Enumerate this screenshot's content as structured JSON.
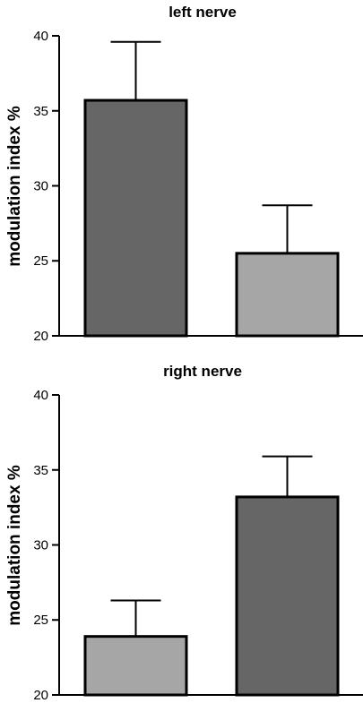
{
  "chart_data": [
    {
      "type": "bar",
      "title": "left nerve",
      "ylabel": "modulation index %",
      "xlabel": "",
      "ylim": [
        20,
        40
      ],
      "yticks": [
        "20",
        "25",
        "30",
        "35",
        "40"
      ],
      "bars": [
        {
          "value": 35.7,
          "error": 3.9,
          "color": "#666666"
        },
        {
          "value": 25.5,
          "error": 3.2,
          "color": "#a6a6a6"
        }
      ]
    },
    {
      "type": "bar",
      "title": "right nerve",
      "ylabel": "modulation index %",
      "xlabel": "",
      "ylim": [
        20,
        40
      ],
      "yticks": [
        "20",
        "25",
        "30",
        "35",
        "40"
      ],
      "bars": [
        {
          "value": 23.9,
          "error": 2.4,
          "color": "#a6a6a6"
        },
        {
          "value": 33.2,
          "error": 2.7,
          "color": "#666666"
        }
      ]
    }
  ]
}
